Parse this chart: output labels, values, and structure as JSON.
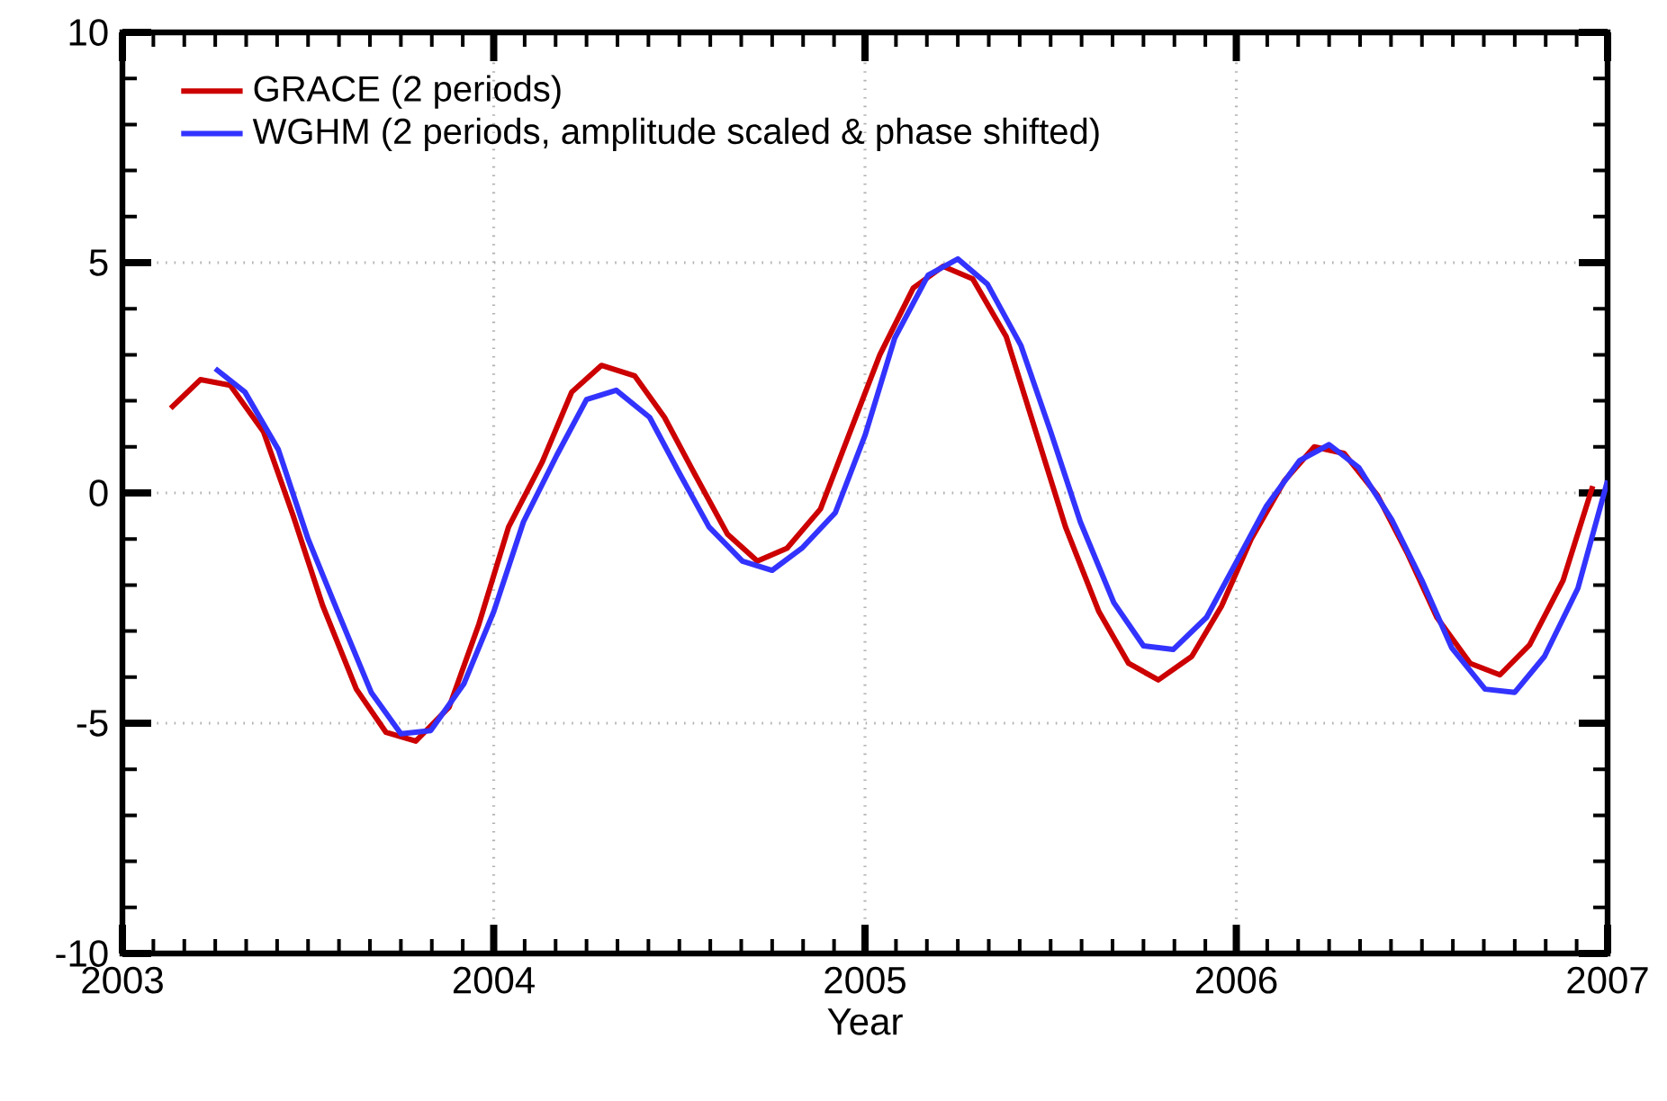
{
  "chart_data": {
    "type": "line",
    "xlabel": "Year",
    "xlim": [
      2003,
      2007
    ],
    "xticks": [
      2003,
      2004,
      2005,
      2006,
      2007
    ],
    "ylim": [
      -10,
      10
    ],
    "yticks": [
      -10,
      -5,
      0,
      5,
      10
    ],
    "grid": true,
    "legend": "top left",
    "line_style": "solid",
    "marker": "none",
    "series": [
      {
        "name": "GRACE (2 periods)",
        "color": "#cc0000",
        "x": [
          2003.13,
          2003.21,
          2003.29,
          2003.38,
          2003.46,
          2003.54,
          2003.63,
          2003.71,
          2003.79,
          2003.88,
          2003.96,
          2004.04,
          2004.13,
          2004.21,
          2004.29,
          2004.38,
          2004.46,
          2004.54,
          2004.63,
          2004.71,
          2004.79,
          2004.88,
          2004.96,
          2005.04,
          2005.13,
          2005.21,
          2005.29,
          2005.38,
          2005.46,
          2005.54,
          2005.63,
          2005.71,
          2005.79,
          2005.88,
          2005.96,
          2006.04,
          2006.13,
          2006.21,
          2006.29,
          2006.38,
          2006.46,
          2006.54,
          2006.63,
          2006.71,
          2006.79,
          2006.88,
          2006.96
        ],
        "values": [
          1.84,
          2.46,
          2.34,
          1.33,
          -0.5,
          -2.46,
          -4.26,
          -5.2,
          -5.39,
          -4.65,
          -2.85,
          -0.74,
          0.66,
          2.19,
          2.77,
          2.54,
          1.64,
          0.43,
          -0.9,
          -1.48,
          -1.2,
          -0.35,
          1.33,
          3.0,
          4.45,
          4.92,
          4.65,
          3.4,
          1.33,
          -0.74,
          -2.58,
          -3.7,
          -4.06,
          -3.55,
          -2.46,
          -1.0,
          0.27,
          1.0,
          0.86,
          -0.05,
          -1.3,
          -2.7,
          -3.7,
          -3.95,
          -3.3,
          -1.9,
          0.15
        ]
      },
      {
        "name": "WGHM (2 periods, amplitude scaled & phase shifted)",
        "color": "#3333ff",
        "x": [
          2003.25,
          2003.33,
          2003.42,
          2003.5,
          2003.58,
          2003.67,
          2003.75,
          2003.83,
          2003.92,
          2004.0,
          2004.08,
          2004.17,
          2004.25,
          2004.33,
          2004.42,
          2004.5,
          2004.58,
          2004.67,
          2004.75,
          2004.83,
          2004.92,
          2005.0,
          2005.08,
          2005.17,
          2005.25,
          2005.33,
          2005.42,
          2005.5,
          2005.58,
          2005.67,
          2005.75,
          2005.83,
          2005.92,
          2006.0,
          2006.08,
          2006.17,
          2006.25,
          2006.33,
          2006.42,
          2006.5,
          2006.58,
          2006.67,
          2006.75,
          2006.83,
          2006.92,
          2007.0
        ],
        "values": [
          2.7,
          2.19,
          0.94,
          -1.0,
          -2.58,
          -4.33,
          -5.23,
          -5.16,
          -4.14,
          -2.58,
          -0.63,
          0.82,
          2.03,
          2.23,
          1.64,
          0.43,
          -0.74,
          -1.48,
          -1.68,
          -1.2,
          -0.43,
          1.25,
          3.36,
          4.73,
          5.08,
          4.53,
          3.2,
          1.33,
          -0.63,
          -2.38,
          -3.32,
          -3.4,
          -2.7,
          -1.5,
          -0.3,
          0.7,
          1.05,
          0.55,
          -0.6,
          -1.9,
          -3.36,
          -4.26,
          -4.33,
          -3.55,
          -2.07,
          0.27
        ]
      }
    ]
  }
}
